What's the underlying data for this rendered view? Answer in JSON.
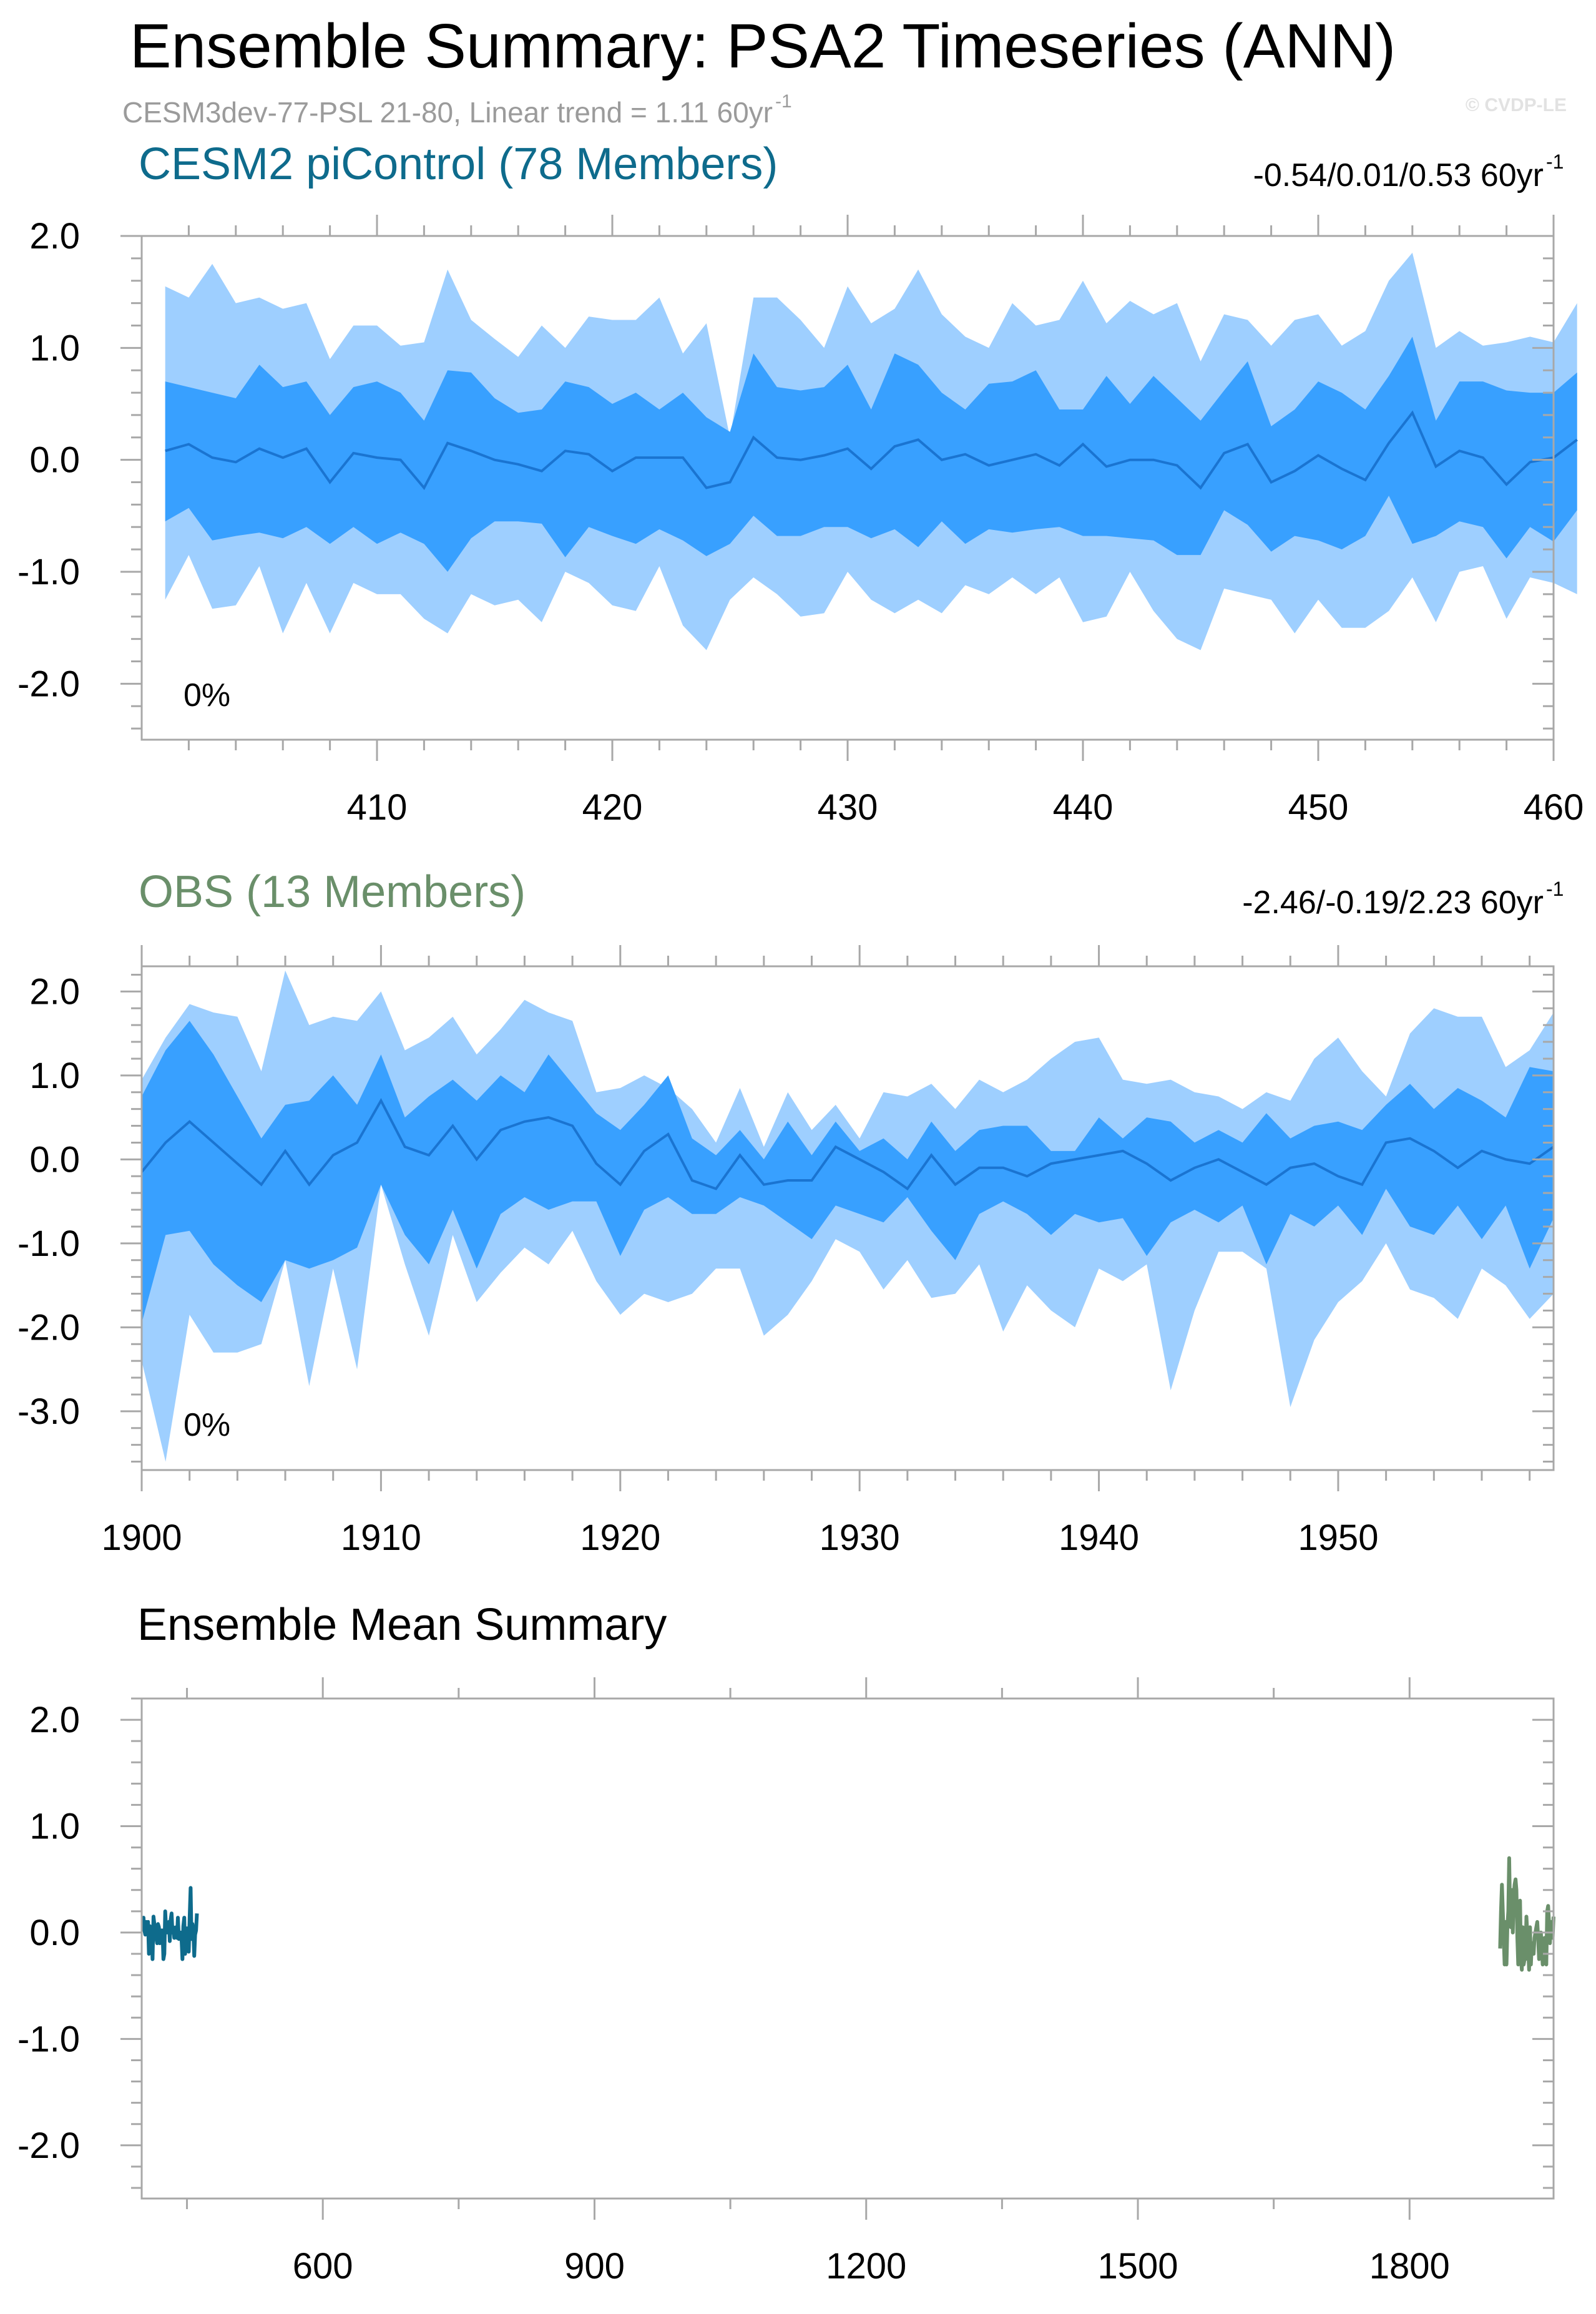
{
  "title": "Ensemble Summary: PSA2 Timeseries (ANN)",
  "subtitle": "CESM3dev-77-PSL 21-80, Linear trend = 1.11 60yr",
  "subtitle_superscript": "-1",
  "copyright": "© CVDP-LE",
  "colors": {
    "outer_band": "#9ecfff",
    "inner_band": "#38a0ff",
    "median_line": "#1a74d1",
    "cesm_title": "#0e6b8c",
    "obs_title": "#6a8f6a",
    "cesm_mean": "#0e6b8c",
    "obs_mean": "#6a8f6a"
  },
  "chart_data": [
    {
      "type": "area",
      "title": "CESM2 piControl (78 Members)",
      "stats": "-0.54/0.01/0.53 60yr",
      "stats_superscript": "-1",
      "annotation": "0%",
      "xlim": [
        400,
        460
      ],
      "ylim": [
        -2.5,
        2.0
      ],
      "xticks": [
        410,
        420,
        430,
        440,
        450,
        460
      ],
      "xticklabels": [
        "410",
        "420",
        "430",
        "440",
        "450",
        "460"
      ],
      "yticks": [
        2.0,
        1.0,
        0.0,
        -1.0,
        -2.0
      ],
      "yticklabels": [
        "2.0",
        "1.0",
        "0.0",
        "-1.0",
        "-2.0"
      ],
      "x_start": 401,
      "p10": [
        -1.25,
        -0.85,
        -1.33,
        -1.3,
        -0.95,
        -1.55,
        -1.1,
        -1.55,
        -1.1,
        -1.2,
        -1.2,
        -1.42,
        -1.55,
        -1.2,
        -1.3,
        -1.25,
        -1.45,
        -1.0,
        -1.1,
        -1.3,
        -1.35,
        -0.95,
        -1.48,
        -1.7,
        -1.25,
        -1.05,
        -1.2,
        -1.4,
        -1.37,
        -1.0,
        -1.25,
        -1.37,
        -1.25,
        -1.37,
        -1.12,
        -1.2,
        -1.05,
        -1.2,
        -1.05,
        -1.45,
        -1.4,
        -1.0,
        -1.35,
        -1.6,
        -1.7,
        -1.15,
        -1.2,
        -1.25,
        -1.55,
        -1.25,
        -1.5,
        -1.5,
        -1.35,
        -1.05,
        -1.45,
        -1.0,
        -0.95,
        -1.42,
        -1.05,
        -1.1,
        -1.2
      ],
      "p25": [
        -0.55,
        -0.43,
        -0.72,
        -0.68,
        -0.65,
        -0.7,
        -0.6,
        -0.75,
        -0.6,
        -0.75,
        -0.65,
        -0.75,
        -1.0,
        -0.7,
        -0.55,
        -0.55,
        -0.57,
        -0.87,
        -0.6,
        -0.68,
        -0.75,
        -0.62,
        -0.72,
        -0.86,
        -0.75,
        -0.5,
        -0.68,
        -0.68,
        -0.6,
        -0.6,
        -0.7,
        -0.62,
        -0.78,
        -0.55,
        -0.75,
        -0.62,
        -0.65,
        -0.62,
        -0.6,
        -0.68,
        -0.68,
        -0.7,
        -0.72,
        -0.85,
        -0.85,
        -0.45,
        -0.58,
        -0.82,
        -0.68,
        -0.72,
        -0.8,
        -0.68,
        -0.32,
        -0.75,
        -0.68,
        -0.55,
        -0.6,
        -0.88,
        -0.6,
        -0.73,
        -0.45
      ],
      "p50": [
        0.08,
        0.14,
        0.02,
        -0.02,
        0.1,
        0.02,
        0.1,
        -0.2,
        0.06,
        0.02,
        0.0,
        -0.25,
        0.15,
        0.08,
        0.0,
        -0.04,
        -0.1,
        0.08,
        0.05,
        -0.1,
        0.02,
        0.02,
        0.02,
        -0.25,
        -0.2,
        0.2,
        0.02,
        0.0,
        0.04,
        0.1,
        -0.08,
        0.12,
        0.18,
        0.0,
        0.05,
        -0.05,
        0.0,
        0.05,
        -0.05,
        0.14,
        -0.06,
        0.0,
        0.0,
        -0.05,
        -0.25,
        0.06,
        0.14,
        -0.2,
        -0.1,
        0.04,
        -0.08,
        -0.18,
        0.15,
        0.42,
        -0.06,
        0.08,
        0.02,
        -0.22,
        -0.02,
        0.02,
        0.18
      ],
      "p75": [
        0.7,
        0.65,
        0.6,
        0.55,
        0.85,
        0.65,
        0.7,
        0.4,
        0.65,
        0.7,
        0.6,
        0.35,
        0.8,
        0.78,
        0.55,
        0.42,
        0.45,
        0.7,
        0.65,
        0.5,
        0.6,
        0.45,
        0.6,
        0.38,
        0.25,
        0.95,
        0.65,
        0.62,
        0.65,
        0.85,
        0.45,
        0.95,
        0.85,
        0.6,
        0.45,
        0.68,
        0.7,
        0.8,
        0.45,
        0.45,
        0.75,
        0.5,
        0.75,
        0.55,
        0.35,
        0.62,
        0.88,
        0.3,
        0.45,
        0.7,
        0.6,
        0.45,
        0.75,
        1.1,
        0.35,
        0.7,
        0.7,
        0.62,
        0.6,
        0.6,
        0.78
      ],
      "p90": [
        1.55,
        1.45,
        1.75,
        1.4,
        1.45,
        1.35,
        1.4,
        0.9,
        1.2,
        1.2,
        1.02,
        1.05,
        1.7,
        1.25,
        1.08,
        0.92,
        1.2,
        1.0,
        1.28,
        1.25,
        1.25,
        1.45,
        0.95,
        1.22,
        0.2,
        1.45,
        1.45,
        1.25,
        1.0,
        1.55,
        1.22,
        1.35,
        1.7,
        1.3,
        1.1,
        1.0,
        1.4,
        1.2,
        1.25,
        1.6,
        1.22,
        1.42,
        1.3,
        1.4,
        0.88,
        1.3,
        1.25,
        1.02,
        1.25,
        1.3,
        1.02,
        1.15,
        1.6,
        1.85,
        1.0,
        1.15,
        1.02,
        1.05,
        1.1,
        1.05,
        1.4
      ]
    },
    {
      "type": "area",
      "title": "OBS (13 Members)",
      "stats": "-2.46/-0.19/2.23 60yr",
      "stats_superscript": "-1",
      "annotation": "0%",
      "xlim": [
        1900,
        1959
      ],
      "ylim": [
        -3.7,
        2.3
      ],
      "xticks": [
        1900,
        1910,
        1920,
        1930,
        1940,
        1950
      ],
      "xticklabels": [
        "1900",
        "1910",
        "1920",
        "1930",
        "1940",
        "1950"
      ],
      "yticks": [
        2.0,
        1.0,
        0.0,
        -1.0,
        -2.0,
        -3.0
      ],
      "yticklabels": [
        "2.0",
        "1.0",
        "0.0",
        "-1.0",
        "-2.0",
        "-3.0"
      ],
      "x_start": 1900,
      "p10": [
        -2.4,
        -3.6,
        -1.85,
        -2.3,
        -2.3,
        -2.2,
        -1.2,
        -2.7,
        -1.3,
        -2.5,
        -0.3,
        -1.25,
        -2.1,
        -0.9,
        -1.7,
        -1.35,
        -1.05,
        -1.25,
        -0.85,
        -1.45,
        -1.85,
        -1.6,
        -1.7,
        -1.6,
        -1.3,
        -1.3,
        -2.1,
        -1.85,
        -1.45,
        -0.95,
        -1.1,
        -1.55,
        -1.2,
        -1.65,
        -1.6,
        -1.25,
        -2.05,
        -1.5,
        -1.8,
        -2.0,
        -1.3,
        -1.45,
        -1.25,
        -2.75,
        -1.8,
        -1.1,
        -1.1,
        -1.3,
        -2.95,
        -2.15,
        -1.7,
        -1.45,
        -1.0,
        -1.55,
        -1.65,
        -1.9,
        -1.3,
        -1.5,
        -1.9,
        -1.6
      ],
      "p25": [
        -1.95,
        -0.9,
        -0.85,
        -1.25,
        -1.5,
        -1.7,
        -1.2,
        -1.3,
        -1.2,
        -1.05,
        -0.3,
        -0.9,
        -1.25,
        -0.6,
        -1.3,
        -0.65,
        -0.45,
        -0.6,
        -0.5,
        -0.5,
        -1.15,
        -0.6,
        -0.45,
        -0.65,
        -0.65,
        -0.45,
        -0.55,
        -0.75,
        -0.95,
        -0.55,
        -0.65,
        -0.75,
        -0.45,
        -0.85,
        -1.2,
        -0.65,
        -0.5,
        -0.65,
        -0.9,
        -0.65,
        -0.75,
        -0.7,
        -1.15,
        -0.75,
        -0.6,
        -0.75,
        -0.55,
        -1.25,
        -0.65,
        -0.8,
        -0.55,
        -0.9,
        -0.35,
        -0.8,
        -0.9,
        -0.55,
        -0.95,
        -0.55,
        -1.3,
        -0.7
      ],
      "p50": [
        -0.15,
        0.2,
        0.45,
        0.2,
        -0.05,
        -0.3,
        0.1,
        -0.3,
        0.05,
        0.2,
        0.7,
        0.15,
        0.05,
        0.4,
        0.0,
        0.35,
        0.45,
        0.5,
        0.4,
        -0.05,
        -0.3,
        0.1,
        0.3,
        -0.25,
        -0.35,
        0.05,
        -0.3,
        -0.25,
        -0.25,
        0.15,
        0.0,
        -0.15,
        -0.35,
        0.05,
        -0.3,
        -0.1,
        -0.1,
        -0.2,
        -0.05,
        0.0,
        0.05,
        0.1,
        -0.05,
        -0.25,
        -0.1,
        0.0,
        -0.15,
        -0.3,
        -0.1,
        -0.05,
        -0.2,
        -0.3,
        0.2,
        0.25,
        0.1,
        -0.1,
        0.1,
        0.0,
        -0.05,
        0.15
      ],
      "p75": [
        0.75,
        1.3,
        1.65,
        1.25,
        0.75,
        0.25,
        0.65,
        0.7,
        1.0,
        0.65,
        1.25,
        0.5,
        0.75,
        0.95,
        0.7,
        1.0,
        0.8,
        1.25,
        0.9,
        0.55,
        0.35,
        0.65,
        1.0,
        0.25,
        0.05,
        0.35,
        0.0,
        0.45,
        0.05,
        0.45,
        0.1,
        0.25,
        0.0,
        0.45,
        0.1,
        0.35,
        0.4,
        0.4,
        0.1,
        0.1,
        0.5,
        0.25,
        0.5,
        0.45,
        0.2,
        0.35,
        0.2,
        0.55,
        0.25,
        0.4,
        0.45,
        0.35,
        0.65,
        0.9,
        0.6,
        0.85,
        0.7,
        0.5,
        1.1,
        1.05
      ],
      "p90": [
        0.95,
        1.45,
        1.85,
        1.75,
        1.7,
        1.05,
        2.25,
        1.6,
        1.7,
        1.65,
        2.0,
        1.3,
        1.45,
        1.7,
        1.25,
        1.55,
        1.9,
        1.75,
        1.65,
        0.8,
        0.85,
        1.0,
        0.85,
        0.6,
        0.2,
        0.85,
        0.15,
        0.8,
        0.35,
        0.65,
        0.25,
        0.8,
        0.75,
        0.9,
        0.6,
        0.95,
        0.8,
        0.95,
        1.2,
        1.4,
        1.45,
        0.95,
        0.9,
        0.95,
        0.8,
        0.75,
        0.6,
        0.8,
        0.7,
        1.2,
        1.45,
        1.05,
        0.75,
        1.5,
        1.8,
        1.7,
        1.7,
        1.1,
        1.3,
        1.75
      ]
    },
    {
      "type": "line",
      "title": "Ensemble Mean Summary",
      "xlim": [
        400,
        1959
      ],
      "ylim": [
        -2.5,
        2.2
      ],
      "xticks": [
        600,
        900,
        1200,
        1500,
        1800
      ],
      "xticklabels": [
        "600",
        "900",
        "1200",
        "1500",
        "1800"
      ],
      "minor_xticks": [
        450,
        750,
        1050,
        1350,
        1650
      ],
      "yticks": [
        2.0,
        1.0,
        0.0,
        -1.0,
        -2.0
      ],
      "yticklabels": [
        "2.0",
        "1.0",
        "0.0",
        "-1.0",
        "-2.0"
      ],
      "series": [
        {
          "name": "CESM2 piControl",
          "x_start": 401,
          "values": [
            0.08,
            0.14,
            0.02,
            -0.02,
            0.1,
            0.02,
            0.1,
            -0.2,
            0.06,
            0.02,
            0.0,
            -0.25,
            0.15,
            0.08,
            0.0,
            -0.04,
            -0.1,
            0.08,
            0.05,
            -0.1,
            0.02,
            0.02,
            0.02,
            -0.25,
            -0.2,
            0.2,
            0.02,
            0.0,
            0.04,
            0.1,
            -0.08,
            0.12,
            0.18,
            0.0,
            0.05,
            -0.05,
            0.0,
            0.05,
            -0.05,
            0.14,
            -0.06,
            0.0,
            0.0,
            -0.05,
            -0.25,
            0.06,
            0.14,
            -0.2,
            -0.1,
            0.04,
            -0.08,
            -0.18,
            0.15,
            0.42,
            -0.06,
            0.08,
            0.02,
            -0.22,
            -0.02,
            0.02,
            0.18
          ]
        },
        {
          "name": "OBS",
          "x_start": 1900,
          "values": [
            -0.15,
            0.2,
            0.45,
            0.2,
            -0.05,
            -0.3,
            0.1,
            -0.3,
            0.05,
            0.2,
            0.7,
            0.15,
            0.05,
            0.4,
            0.0,
            0.35,
            0.45,
            0.5,
            0.4,
            -0.05,
            -0.3,
            0.1,
            0.3,
            -0.25,
            -0.35,
            0.05,
            -0.3,
            -0.25,
            -0.25,
            0.15,
            0.0,
            -0.15,
            -0.35,
            0.05,
            -0.3,
            -0.1,
            -0.1,
            -0.2,
            -0.05,
            0.0,
            0.05,
            0.1,
            -0.05,
            -0.25,
            -0.1,
            0.0,
            -0.15,
            -0.3,
            -0.1,
            -0.05,
            -0.2,
            -0.3,
            0.2,
            0.25,
            0.1,
            -0.1,
            0.1,
            0.0,
            -0.05,
            0.15
          ]
        }
      ]
    }
  ]
}
